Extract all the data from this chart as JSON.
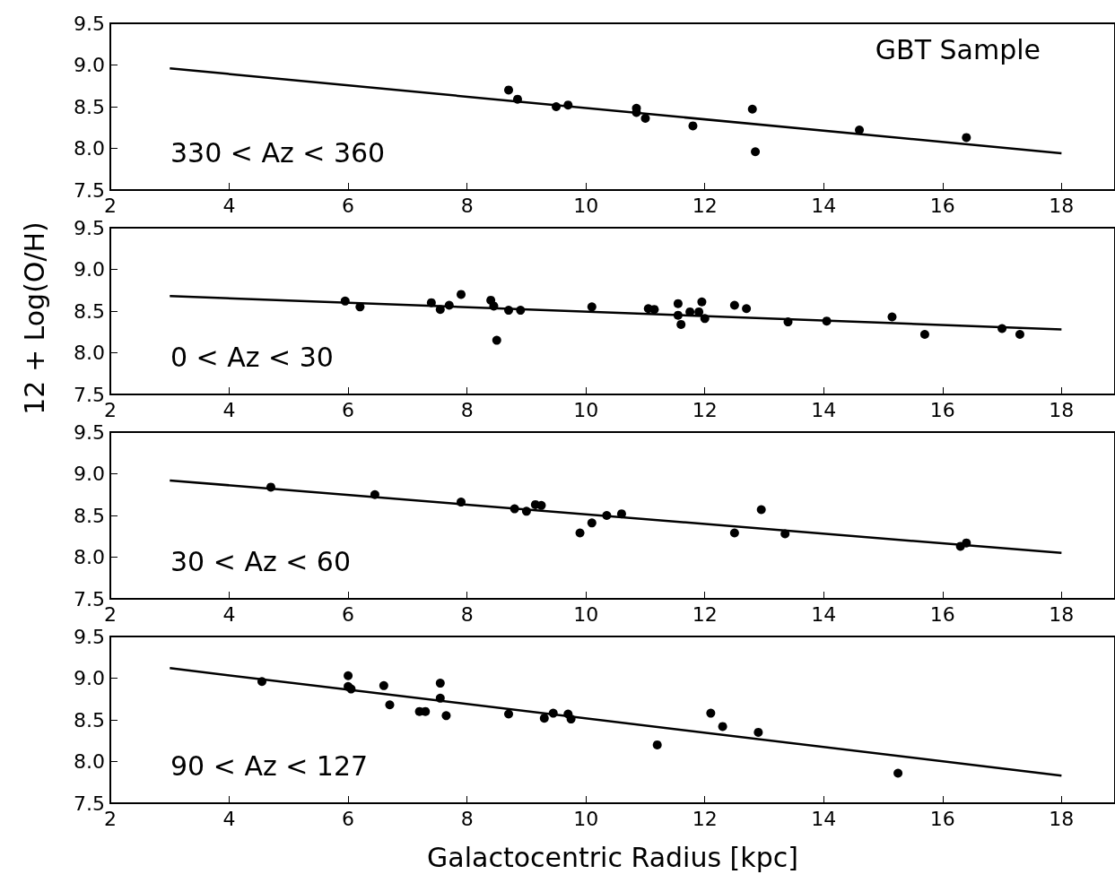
{
  "chart_data": [
    {
      "type": "scatter",
      "title": "GBT Sample",
      "annotations": [
        "330 < Az < 360"
      ],
      "xlim": [
        2,
        18.9
      ],
      "xticks": [
        2,
        4,
        6,
        8,
        10,
        12,
        14,
        16,
        18
      ],
      "ylim": [
        7.5,
        9.5
      ],
      "yticks": [
        {
          "value": 7.5,
          "label": "7.5"
        },
        {
          "value": 8,
          "label": "8.0"
        },
        {
          "value": 8.5,
          "label": "8.5"
        },
        {
          "value": 9,
          "label": "9.0"
        },
        {
          "value": 9.5,
          "label": "9.5"
        }
      ],
      "series": [
        {
          "marker": "circle",
          "color": "#000000",
          "x": [
            8.7,
            8.85,
            9.5,
            9.7,
            10.85,
            10.85,
            11.0,
            11.8,
            12.8,
            12.85,
            14.6,
            16.4
          ],
          "values": [
            8.7,
            8.59,
            8.5,
            8.52,
            8.48,
            8.43,
            8.36,
            8.27,
            8.47,
            7.96,
            8.22,
            8.13
          ]
        },
        {
          "type": "line",
          "marker": "none",
          "color": "#000000",
          "x": [
            3,
            18
          ],
          "values": [
            8.96,
            7.94
          ]
        }
      ]
    },
    {
      "type": "scatter",
      "ylabel": "12 + Log(O/H)",
      "annotations": [
        "0 < Az < 30"
      ],
      "xlim": [
        2,
        18.9
      ],
      "xticks": [
        2,
        4,
        6,
        8,
        10,
        12,
        14,
        16,
        18
      ],
      "ylim": [
        7.5,
        9.5
      ],
      "yticks": [
        {
          "value": 7.5,
          "label": "7.5"
        },
        {
          "value": 8,
          "label": "8.0"
        },
        {
          "value": 8.5,
          "label": "8.5"
        },
        {
          "value": 9,
          "label": "9.0"
        },
        {
          "value": 9.5,
          "label": "9.5"
        }
      ],
      "series": [
        {
          "marker": "circle",
          "color": "#000000",
          "x": [
            5.95,
            6.2,
            7.4,
            7.55,
            7.7,
            7.9,
            8.4,
            8.45,
            8.5,
            8.7,
            8.9,
            10.1,
            11.05,
            11.15,
            11.55,
            11.55,
            11.6,
            11.75,
            11.9,
            11.95,
            12.0,
            12.5,
            12.7,
            13.4,
            14.05,
            15.15,
            15.7,
            17.0,
            17.3
          ],
          "values": [
            8.62,
            8.55,
            8.6,
            8.52,
            8.57,
            8.7,
            8.63,
            8.56,
            8.15,
            8.51,
            8.51,
            8.55,
            8.53,
            8.52,
            8.59,
            8.45,
            8.34,
            8.49,
            8.49,
            8.61,
            8.41,
            8.57,
            8.53,
            8.37,
            8.38,
            8.43,
            8.22,
            8.29,
            8.22
          ]
        },
        {
          "type": "line",
          "marker": "none",
          "color": "#000000",
          "x": [
            3,
            18
          ],
          "values": [
            8.68,
            8.28
          ]
        }
      ]
    },
    {
      "type": "scatter",
      "annotations": [
        "30 < Az < 60"
      ],
      "xlim": [
        2,
        18.9
      ],
      "xticks": [
        2,
        4,
        6,
        8,
        10,
        12,
        14,
        16,
        18
      ],
      "ylim": [
        7.5,
        9.5
      ],
      "yticks": [
        {
          "value": 7.5,
          "label": "7.5"
        },
        {
          "value": 8,
          "label": "8.0"
        },
        {
          "value": 8.5,
          "label": "8.5"
        },
        {
          "value": 9,
          "label": "9.0"
        },
        {
          "value": 9.5,
          "label": "9.5"
        }
      ],
      "series": [
        {
          "marker": "circle",
          "color": "#000000",
          "x": [
            4.7,
            6.45,
            7.9,
            8.8,
            9.0,
            9.15,
            9.25,
            9.9,
            10.1,
            10.35,
            10.6,
            12.5,
            12.95,
            13.35,
            16.3,
            16.4
          ],
          "values": [
            8.84,
            8.75,
            8.66,
            8.58,
            8.55,
            8.63,
            8.62,
            8.29,
            8.41,
            8.5,
            8.52,
            8.29,
            8.57,
            8.28,
            8.13,
            8.17
          ]
        },
        {
          "type": "line",
          "marker": "none",
          "color": "#000000",
          "x": [
            3,
            18
          ],
          "values": [
            8.92,
            8.05
          ]
        }
      ]
    },
    {
      "type": "scatter",
      "xlabel": "Galactocentric Radius [kpc]",
      "annotations": [
        "90 < Az < 127"
      ],
      "xlim": [
        2,
        18.9
      ],
      "xticks": [
        2,
        4,
        6,
        8,
        10,
        12,
        14,
        16,
        18
      ],
      "ylim": [
        7.5,
        9.5
      ],
      "yticks": [
        {
          "value": 7.5,
          "label": "7.5"
        },
        {
          "value": 8,
          "label": "8.0"
        },
        {
          "value": 8.5,
          "label": "8.5"
        },
        {
          "value": 9,
          "label": "9.0"
        },
        {
          "value": 9.5,
          "label": "9.5"
        }
      ],
      "series": [
        {
          "marker": "circle",
          "color": "#000000",
          "x": [
            4.55,
            6.0,
            6.0,
            6.05,
            6.6,
            6.7,
            7.2,
            7.3,
            7.55,
            7.55,
            7.65,
            8.7,
            9.3,
            9.45,
            9.7,
            9.75,
            11.2,
            12.1,
            12.3,
            12.9,
            15.25
          ],
          "values": [
            8.96,
            9.03,
            8.9,
            8.87,
            8.91,
            8.68,
            8.6,
            8.6,
            8.94,
            8.76,
            8.55,
            8.57,
            8.52,
            8.58,
            8.57,
            8.51,
            8.2,
            8.58,
            8.42,
            8.35,
            7.86
          ]
        },
        {
          "type": "line",
          "marker": "none",
          "color": "#000000",
          "x": [
            3,
            18
          ],
          "values": [
            9.12,
            7.83
          ]
        }
      ]
    }
  ]
}
